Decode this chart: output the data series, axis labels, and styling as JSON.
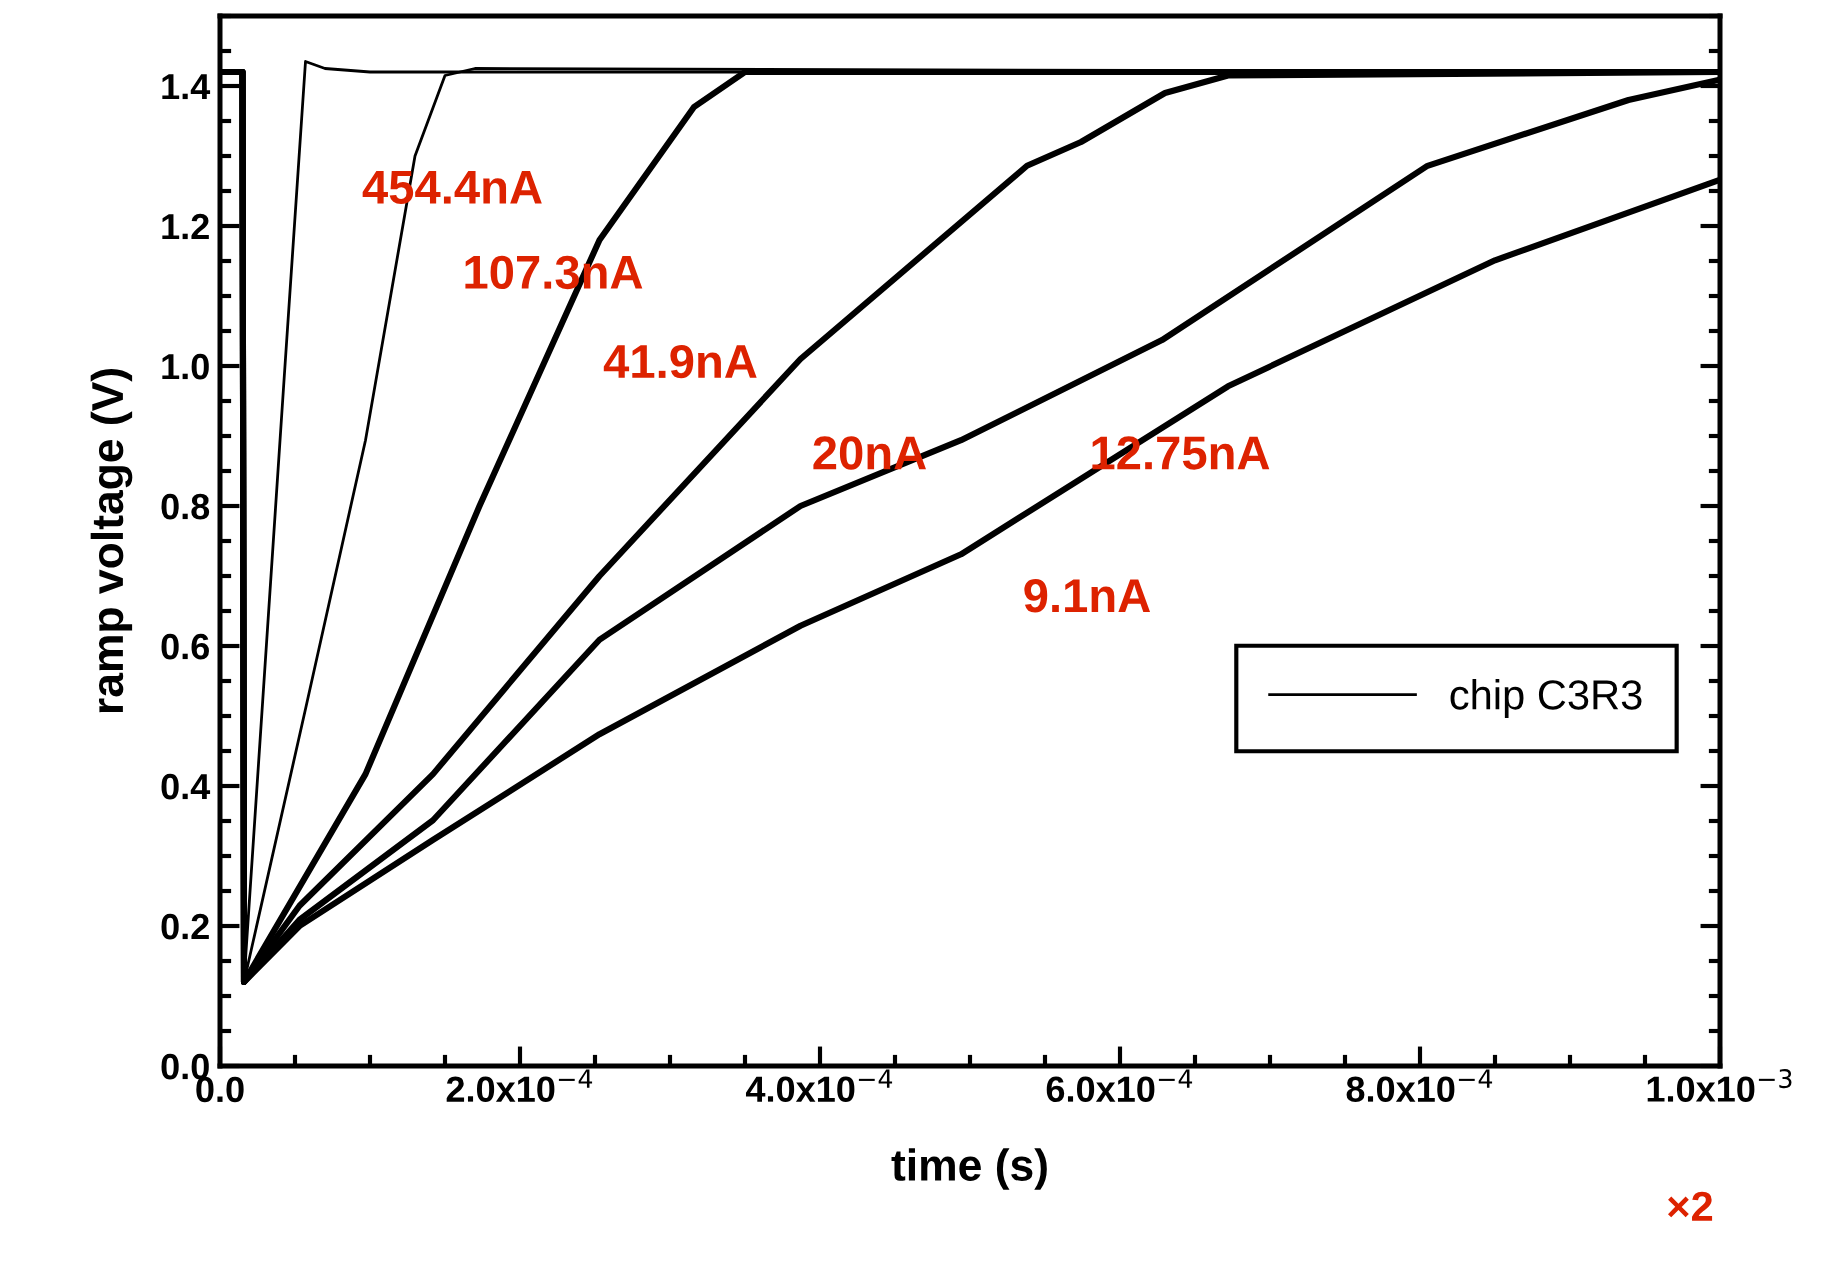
{
  "chart_data": {
    "type": "line",
    "xlabel": "time (s)",
    "ylabel": "ramp voltage (V)",
    "xlim": [
      0,
      0.001
    ],
    "ylim": [
      0,
      1.5
    ],
    "xticks": [
      {
        "value": 0,
        "label": "0.0"
      },
      {
        "value": 0.0002,
        "label": "2.0x10$^{−4}$"
      },
      {
        "value": 0.0004,
        "label": "4.0x10$^{−4}$"
      },
      {
        "value": 0.0006,
        "label": "6.0x10$^{−4}$"
      },
      {
        "value": 0.0008,
        "label": "8.0x10$^{−4}$"
      },
      {
        "value": 0.001,
        "label": "1.0x10$^{−3}$"
      }
    ],
    "yticks": [
      {
        "value": 0,
        "label": "0.0"
      },
      0.2,
      0.4,
      0.6,
      0.8,
      {
        "value": 1,
        "label": "1.0"
      },
      1.2,
      1.4
    ],
    "grid": false,
    "legend": "right",
    "marker": "none",
    "line_style": "solid",
    "series": [
      {
        "name": "chip C3R3",
        "color": "#000000",
        "x": [
          0,
          1.5e-05,
          1.6e-05,
          4.3e-05,
          5.7e-05,
          7e-05,
          0.0001,
          0.001
        ],
        "values": [
          1.42,
          1.42,
          0.12,
          0.99,
          1.435,
          1.425,
          1.42,
          1.42
        ]
      },
      {
        "color": "#000000",
        "x": [
          0,
          1.5e-05,
          1.6e-05,
          5.7e-05,
          9.7e-05,
          0.00013,
          0.00015,
          0.00017,
          0.001
        ],
        "values": [
          1.42,
          1.42,
          0.12,
          0.51,
          0.894,
          1.3,
          1.415,
          1.425,
          1.42
        ]
      },
      {
        "color": "#000000",
        "x": [
          0,
          1.5e-05,
          1.6e-05,
          9.7e-05,
          0.000173,
          0.000253,
          0.000316,
          0.00035,
          0.001
        ],
        "values": [
          1.42,
          1.42,
          0.12,
          0.417,
          0.8,
          1.18,
          1.37,
          1.42,
          1.42
        ]
      },
      {
        "color": "#000000",
        "x": [
          0,
          1.5e-05,
          1.6e-05,
          5.3e-05,
          0.000142,
          0.000253,
          0.000387,
          0.000538,
          0.000574,
          0.00063,
          0.000672,
          0.001
        ],
        "values": [
          1.42,
          1.42,
          0.12,
          0.229,
          0.417,
          0.7,
          1.01,
          1.286,
          1.32,
          1.39,
          1.415,
          1.42
        ]
      },
      {
        "color": "#000000",
        "x": [
          0,
          1.5e-05,
          1.6e-05,
          5.3e-05,
          0.000142,
          0.000253,
          0.000387,
          0.000494,
          0.000628,
          0.000805,
          0.000939,
          0.001
        ],
        "values": [
          1.42,
          1.42,
          0.12,
          0.209,
          0.351,
          0.609,
          0.8,
          0.894,
          1.037,
          1.286,
          1.38,
          1.409
        ]
      },
      {
        "color": "#000000",
        "x": [
          0,
          1.5e-05,
          1.6e-05,
          5.3e-05,
          0.000142,
          0.000253,
          0.000387,
          0.000494,
          0.000672,
          0.00085,
          0.001
        ],
        "values": [
          1.42,
          1.42,
          0.12,
          0.2,
          0.323,
          0.474,
          0.629,
          0.731,
          0.971,
          1.151,
          1.266
        ]
      }
    ],
    "annotations": [
      "454.4nA",
      "107.3nA",
      "41.9nA",
      "20nA",
      "12.75nA",
      "9.1nA",
      "×2"
    ]
  }
}
